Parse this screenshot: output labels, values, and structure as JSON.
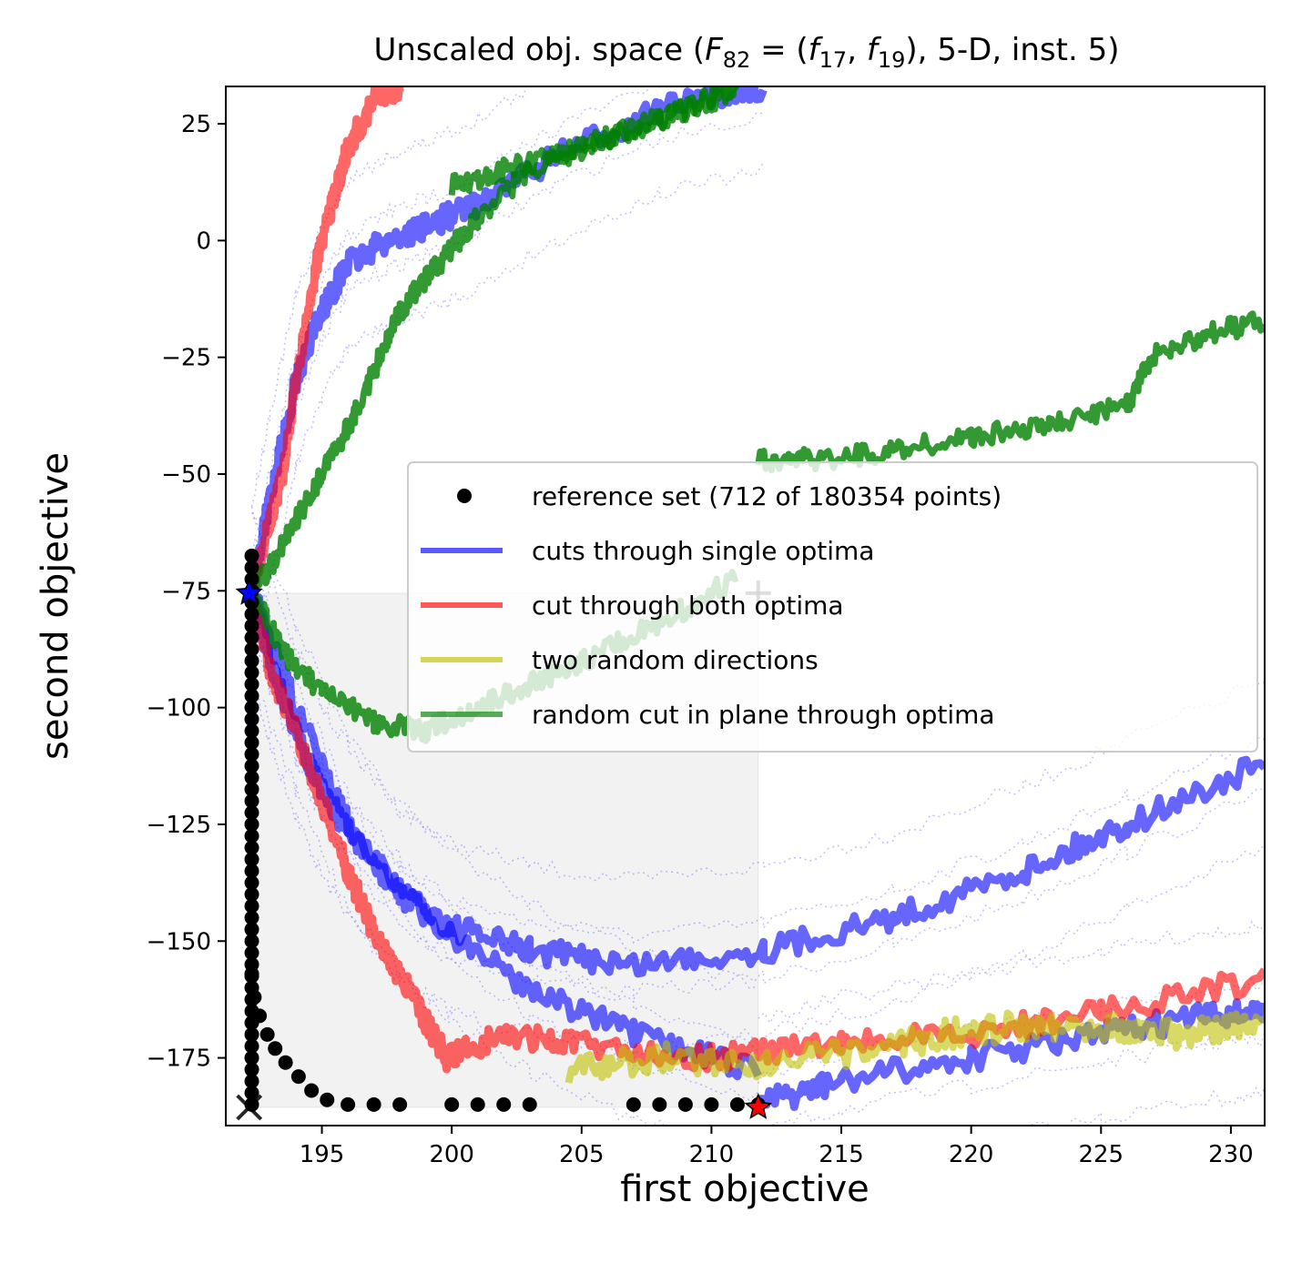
{
  "chart_data": {
    "type": "scatter",
    "title_parts": {
      "prefix": "Unscaled obj. space (",
      "F": "F",
      "F_sub": "82",
      "eq": " = (",
      "f1": "f",
      "f1_sub": "17",
      "comma": ", ",
      "f2": "f",
      "f2_sub": "19",
      "suffix": "), 5-D, inst. 5)"
    },
    "xlabel": "first objective",
    "ylabel": "second objective",
    "xlim": [
      191.3,
      231.3
    ],
    "ylim": [
      -189.5,
      33.0
    ],
    "xticks": [
      195,
      200,
      205,
      210,
      215,
      220,
      225,
      230
    ],
    "yticks": [
      25,
      0,
      -25,
      -50,
      -75,
      -100,
      -125,
      -150,
      -175
    ],
    "xtick_labels": [
      "195",
      "200",
      "205",
      "210",
      "215",
      "220",
      "225",
      "230"
    ],
    "ytick_labels": [
      "25",
      "0",
      "−25",
      "−50",
      "−75",
      "−100",
      "−125",
      "−150",
      "−175"
    ],
    "legend": {
      "placement": "center-right",
      "entries": [
        {
          "label": "reference set (712 of 180354 points)",
          "color": "#000000",
          "marker": "dot"
        },
        {
          "label": "cuts through single optima",
          "color": "#0000ff",
          "marker": "line"
        },
        {
          "label": "cut through both optima",
          "color": "#ff0000",
          "marker": "line"
        },
        {
          "label": "two random directions",
          "color": "#bfbf00",
          "marker": "line"
        },
        {
          "label": "random cut in plane through optima",
          "color": "#007f00",
          "marker": "line"
        }
      ]
    },
    "colors": {
      "reference": "#000000",
      "single": "#0000ff",
      "both": "#ff0000",
      "random_dirs": "#bfbf00",
      "plane": "#008000"
    },
    "reference_set": {
      "vertical_x": 192.3,
      "vertical_y_range": [
        -185,
        -66
      ],
      "curve": [
        [
          192.3,
          -157
        ],
        [
          192.4,
          -162
        ],
        [
          192.6,
          -166
        ],
        [
          192.9,
          -170
        ],
        [
          193.2,
          -173
        ],
        [
          193.6,
          -176
        ],
        [
          194.1,
          -179
        ],
        [
          194.6,
          -182
        ],
        [
          195.2,
          -184
        ],
        [
          196.0,
          -185
        ],
        [
          197.0,
          -185
        ],
        [
          198.0,
          -185
        ],
        [
          200.0,
          -185
        ],
        [
          201.0,
          -185
        ],
        [
          202.0,
          -185
        ],
        [
          203.0,
          -185
        ],
        [
          207.0,
          -185
        ],
        [
          208.0,
          -185
        ],
        [
          209.0,
          -185
        ],
        [
          210.0,
          -185
        ],
        [
          211.0,
          -185
        ],
        [
          211.8,
          -185
        ]
      ]
    },
    "markers": [
      {
        "name": "ideal-point",
        "symbol": "x",
        "x": 192.2,
        "y": -185.6,
        "color": "#000000"
      },
      {
        "name": "optimum-1",
        "symbol": "star",
        "x": 192.2,
        "y": -75.5,
        "color": "#0000ff"
      },
      {
        "name": "optimum-2",
        "symbol": "star",
        "x": 211.8,
        "y": -185.6,
        "color": "#ff0000"
      },
      {
        "name": "nadir-point",
        "symbol": "plus",
        "x": 211.8,
        "y": -75.5,
        "color": "#333333"
      }
    ],
    "series": [
      {
        "kind": "single",
        "points": [
          [
            192.3,
            -75
          ],
          [
            193.0,
            -90
          ],
          [
            194.0,
            -105
          ],
          [
            195.0,
            -118
          ],
          [
            196.5,
            -130
          ],
          [
            198.0,
            -140
          ],
          [
            200.0,
            -147
          ],
          [
            203.0,
            -152
          ],
          [
            207.0,
            -155
          ],
          [
            212.0,
            -152
          ],
          [
            217.0,
            -145
          ],
          [
            222.0,
            -135
          ],
          [
            226.0,
            -125
          ],
          [
            231.3,
            -112
          ]
        ]
      },
      {
        "kind": "single",
        "points": [
          [
            211.8,
            -185
          ],
          [
            215.0,
            -180
          ],
          [
            220.0,
            -175
          ],
          [
            225.0,
            -170
          ],
          [
            229.0,
            -166
          ],
          [
            231.3,
            -165
          ]
        ]
      },
      {
        "kind": "single",
        "points": [
          [
            192.3,
            -75
          ],
          [
            193.0,
            -55
          ],
          [
            194.0,
            -30
          ],
          [
            195.0,
            -15
          ],
          [
            196.0,
            -5
          ],
          [
            197.5,
            0
          ],
          [
            199.0,
            3
          ],
          [
            201.0,
            8
          ],
          [
            204.0,
            18
          ],
          [
            208.0,
            28
          ],
          [
            212.0,
            33
          ]
        ]
      },
      {
        "kind": "single",
        "points": [
          [
            192.3,
            -75
          ],
          [
            194.0,
            -100
          ],
          [
            196.0,
            -125
          ],
          [
            199.0,
            -145
          ],
          [
            203.0,
            -160
          ],
          [
            207.0,
            -170
          ],
          [
            211.8,
            -178
          ]
        ]
      },
      {
        "kind": "both",
        "points": [
          [
            192.3,
            -75
          ],
          [
            193.0,
            -60
          ],
          [
            193.5,
            -50
          ],
          [
            194.0,
            -30
          ],
          [
            194.8,
            -5
          ],
          [
            195.5,
            10
          ],
          [
            196.0,
            20
          ],
          [
            197.0,
            30
          ],
          [
            198.0,
            33
          ]
        ]
      },
      {
        "kind": "both",
        "points": [
          [
            192.3,
            -75
          ],
          [
            193.0,
            -92
          ],
          [
            194.0,
            -105
          ],
          [
            195.0,
            -120
          ],
          [
            196.0,
            -135
          ],
          [
            197.0,
            -148
          ],
          [
            198.5,
            -162
          ],
          [
            199.8,
            -175
          ],
          [
            202.0,
            -170
          ],
          [
            205.0,
            -172
          ],
          [
            210.0,
            -175
          ],
          [
            215.0,
            -172
          ],
          [
            220.0,
            -170
          ],
          [
            225.0,
            -165
          ],
          [
            231.3,
            -158
          ]
        ]
      },
      {
        "kind": "random_dirs",
        "points": [
          [
            204.5,
            -178
          ],
          [
            208.0,
            -175
          ],
          [
            212.0,
            -176
          ],
          [
            216.0,
            -174
          ],
          [
            219.0,
            -170
          ],
          [
            222.0,
            -168
          ],
          [
            225.0,
            -168
          ],
          [
            228.0,
            -170
          ],
          [
            231.3,
            -168
          ]
        ]
      },
      {
        "kind": "plane",
        "points": [
          [
            192.3,
            -75
          ],
          [
            193.5,
            -88
          ],
          [
            195.0,
            -97
          ],
          [
            197.0,
            -103
          ],
          [
            199.0,
            -105
          ],
          [
            201.0,
            -100
          ],
          [
            203.0,
            -95
          ],
          [
            205.0,
            -90
          ],
          [
            208.0,
            -82
          ],
          [
            211.0,
            -72
          ]
        ]
      },
      {
        "kind": "plane",
        "points": [
          [
            192.3,
            -75
          ],
          [
            193.0,
            -70
          ],
          [
            194.0,
            -60
          ],
          [
            195.0,
            -50
          ],
          [
            196.0,
            -40
          ],
          [
            197.0,
            -28
          ],
          [
            198.0,
            -15
          ],
          [
            199.5,
            -5
          ],
          [
            201.0,
            5
          ],
          [
            203.0,
            15
          ],
          [
            206.0,
            22
          ],
          [
            209.0,
            28
          ],
          [
            211.0,
            33
          ]
        ]
      },
      {
        "kind": "plane",
        "points": [
          [
            211.8,
            -47
          ],
          [
            214.0,
            -47
          ],
          [
            217.0,
            -45
          ],
          [
            220.0,
            -42
          ],
          [
            223.0,
            -40
          ],
          [
            226.0,
            -35
          ],
          [
            227.0,
            -25
          ],
          [
            229.0,
            -20
          ],
          [
            231.3,
            -17
          ]
        ]
      },
      {
        "kind": "plane",
        "points": [
          [
            200.0,
            12
          ],
          [
            202.0,
            15
          ],
          [
            204.0,
            18
          ],
          [
            206.0,
            22
          ],
          [
            208.0,
            26
          ],
          [
            210.0,
            30
          ],
          [
            211.0,
            33
          ]
        ]
      }
    ]
  }
}
